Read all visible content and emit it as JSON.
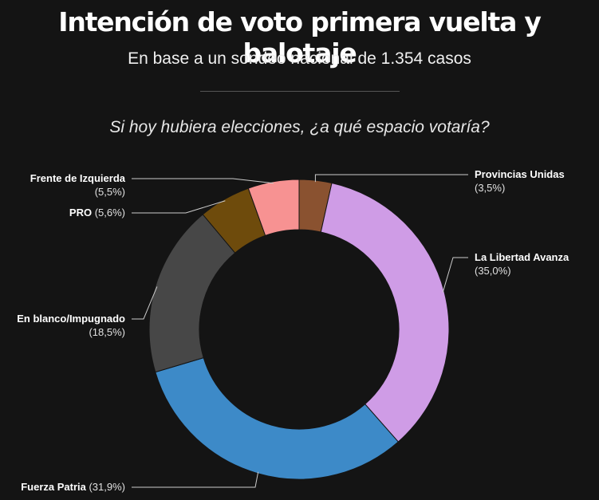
{
  "header": {
    "title": "Intención de voto primera vuelta y balotaje",
    "subtitle": "En base a un sondeo nacional de 1.354 casos",
    "question": "Si hoy hubiera elecciones, ¿a qué espacio votaría?"
  },
  "chart_data": {
    "type": "pie",
    "variant": "donut",
    "title": "Intención de voto primera vuelta y balotaje",
    "subtitle": "En base a un sondeo nacional de 1.354 casos",
    "question": "Si hoy hubiera elecciones, ¿a qué espacio votaría?",
    "unit": "%",
    "slices": [
      {
        "id": "provincias-unidas",
        "name": "Provincias Unidas",
        "value": 3.5,
        "value_label": "(3,5%)",
        "color": "#8a5230"
      },
      {
        "id": "la-libertad-avanza",
        "name": "La Libertad Avanza",
        "value": 35.0,
        "value_label": "(35,0%)",
        "color": "#cf9ce6"
      },
      {
        "id": "fuerza-patria",
        "name": "Fuerza Patria",
        "value": 31.9,
        "value_label": "(31,9%)",
        "color": "#3d8ac8"
      },
      {
        "id": "en-blanco-impugnado",
        "name": "En blanco/Impugnado",
        "value": 18.5,
        "value_label": "(18,5%)",
        "color": "#474747"
      },
      {
        "id": "pro",
        "name": "PRO",
        "value": 5.6,
        "value_label": "(5,6%)",
        "color": "#6e4b0c"
      },
      {
        "id": "frente-de-izquierda",
        "name": "Frente de Izquierda",
        "value": 5.5,
        "value_label": "(5,5%)",
        "color": "#f79292"
      }
    ]
  }
}
